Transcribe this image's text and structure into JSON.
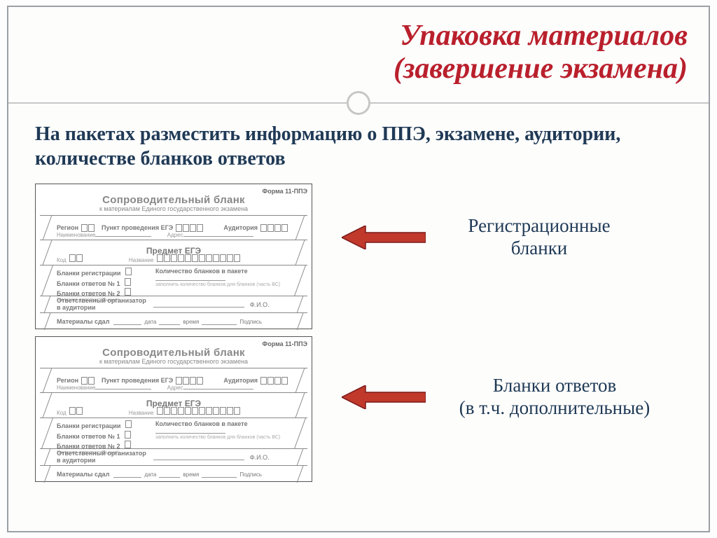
{
  "title_line1": "Упаковка материалов",
  "title_line2": "(завершение экзамена)",
  "subtitle": "На пакетах разместить информацию о ППЭ, экзамене, аудитории, количестве бланков ответов",
  "form": {
    "corner": "Форма 11-ППЭ",
    "head1": "Сопроводительный бланк",
    "head2": "к материалам Единого государственного экзамена",
    "row1": {
      "region": "Регион",
      "ppe": "Пункт проведения ЕГЭ",
      "aud": "Аудитория"
    },
    "row1b": {
      "name": "Наименование",
      "addr": "Адрес"
    },
    "row2": {
      "subject": "Предмет ЕГЭ",
      "code": "Код",
      "name": "Название"
    },
    "row3": {
      "b_reg": "Бланки регистрации",
      "b_ans1": "Бланки ответов № 1",
      "b_ans2": "Бланки ответов № 2",
      "b_ans2_sub": "(включая дополнительные)",
      "count": "Количество бланков в пакете",
      "count_sub": "заполнить количество бланков\nдля бланков (часть ВС)"
    },
    "row4": {
      "org": "Ответственный организатор",
      "aud": "в аудитории",
      "fio": "Ф.И.О."
    },
    "row5": {
      "m": "Материалы сдал",
      "date": "дата",
      "time": "время",
      "sign": "Подпись"
    }
  },
  "callout1_l1": "Регистрационные",
  "callout1_l2": "бланки",
  "callout2_l1": "Бланки ответов",
  "callout2_l2": "(в т.ч. дополнительные)",
  "colors": {
    "title": "#b9202c",
    "text": "#203a56",
    "divider": "#c7c7c7",
    "arrow_fill": "#c0392b",
    "arrow_stroke": "#7b1a1a"
  }
}
